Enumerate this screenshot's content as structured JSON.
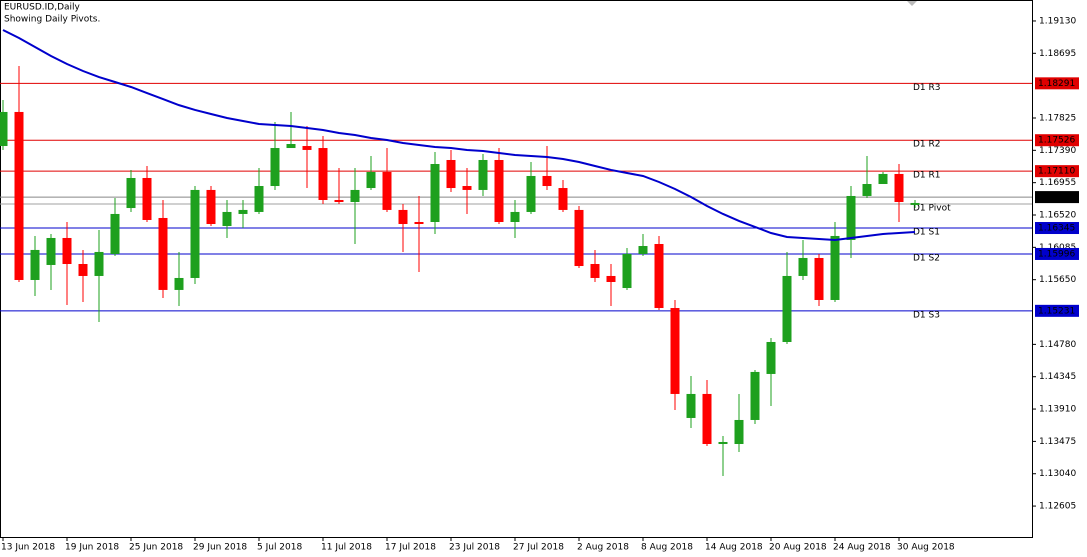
{
  "chart_data": {
    "type": "candlestick",
    "title": "EURUSD.ID,Daily",
    "subtitle": "Showing Daily Pivots.",
    "categories": [
      "13 Jun 2018",
      null,
      null,
      null,
      "19 Jun 2018",
      null,
      null,
      null,
      "25 Jun 2018",
      null,
      null,
      null,
      "29 Jun 2018",
      null,
      null,
      null,
      "5 Jul 2018",
      null,
      null,
      null,
      "11 Jul 2018",
      null,
      null,
      null,
      "17 Jul 2018",
      null,
      null,
      null,
      "23 Jul 2018",
      null,
      null,
      null,
      "27 Jul 2018",
      null,
      null,
      null,
      "2 Aug 2018",
      null,
      null,
      null,
      "8 Aug 2018",
      null,
      null,
      null,
      "14 Aug 2018",
      null,
      null,
      null,
      "20 Aug 2018",
      null,
      null,
      null,
      "24 Aug 2018",
      null,
      null,
      null,
      "30 Aug 2018",
      null
    ],
    "open": [
      1.17448,
      1.17906,
      1.15646,
      1.15848,
      1.16211,
      1.15861,
      1.157,
      1.15996,
      1.16614,
      1.17018,
      1.1648,
      1.15512,
      1.15673,
      1.16857,
      1.16372,
      1.16534,
      1.16561,
      1.1691,
      1.17421,
      1.17448,
      1.17421,
      1.16722,
      1.16695,
      1.16883,
      1.17099,
      1.16588,
      1.16426,
      1.16426,
      1.1726,
      1.1691,
      1.16857,
      1.1726,
      1.16426,
      1.16561,
      1.17045,
      1.16883,
      1.16588,
      1.15861,
      1.157,
      1.15538,
      1.15996,
      1.1613,
      1.15269,
      1.1379,
      1.14113,
      1.1344,
      1.1344,
      1.13763,
      1.14382,
      1.14812,
      1.157,
      1.15942,
      1.15377,
      1.16184,
      1.16776,
      1.16937,
      1.17072,
      1.16655
    ],
    "high": [
      1.18067,
      1.18524,
      1.16238,
      1.16265,
      1.16426,
      1.1605,
      1.16319,
      1.16749,
      1.17126,
      1.17179,
      1.16722,
      1.16023,
      1.1691,
      1.1691,
      1.16722,
      1.16722,
      1.17152,
      1.17771,
      1.17906,
      1.17717,
      1.17583,
      1.17152,
      1.17152,
      1.17314,
      1.17421,
      1.16668,
      1.16776,
      1.17368,
      1.17395,
      1.17152,
      1.17341,
      1.17421,
      1.16722,
      1.17233,
      1.17448,
      1.16991,
      1.16641,
      1.1605,
      1.15861,
      1.16076,
      1.16265,
      1.16238,
      1.15377,
      1.14355,
      1.14301,
      1.13548,
      1.14113,
      1.14436,
      1.14866,
      1.16023,
      1.16184,
      1.15996,
      1.16426,
      1.1691,
      1.17314,
      1.17099,
      1.17206,
      1.16722
    ],
    "low": [
      1.17395,
      1.15619,
      1.15431,
      1.15512,
      1.1531,
      1.1535,
      1.15081,
      1.15969,
      1.16561,
      1.16426,
      1.15404,
      1.15296,
      1.15592,
      1.16372,
      1.16211,
      1.16345,
      1.16534,
      1.16857,
      1.17421,
      1.16883,
      1.16668,
      1.16668,
      1.1613,
      1.16857,
      1.16561,
      1.16023,
      1.15754,
      1.16265,
      1.1683,
      1.16534,
      1.16776,
      1.16399,
      1.16211,
      1.16534,
      1.16857,
      1.16561,
      1.15807,
      1.15619,
      1.15296,
      1.15512,
      1.15969,
      1.15243,
      1.13898,
      1.13655,
      1.13413,
      1.1301,
      1.13333,
      1.13709,
      1.13951,
      1.14785,
      1.15646,
      1.15296,
      1.1535,
      1.15942,
      1.16749,
      1.16937,
      1.16426,
      1.16614
    ],
    "close": [
      1.17906,
      1.15646,
      1.1605,
      1.16211,
      1.15861,
      1.157,
      1.16023,
      1.16534,
      1.17018,
      1.16453,
      1.15512,
      1.15673,
      1.16857,
      1.16399,
      1.16561,
      1.16588,
      1.1691,
      1.17421,
      1.17475,
      1.17395,
      1.16722,
      1.16695,
      1.16857,
      1.17099,
      1.16588,
      1.16399,
      1.16399,
      1.17206,
      1.16883,
      1.16857,
      1.1726,
      1.16426,
      1.16561,
      1.17045,
      1.1691,
      1.16588,
      1.15834,
      1.15673,
      1.15619,
      1.15996,
      1.16103,
      1.15269,
      1.14113,
      1.14113,
      1.1344,
      1.13467,
      1.13763,
      1.14409,
      1.14812,
      1.157,
      1.15942,
      1.15377,
      1.16238,
      1.16776,
      1.16937,
      1.17072,
      1.16695,
      1.16682
    ],
    "up_color": "#1ea01e",
    "down_color": "#ff0000",
    "ma": {
      "color": "#0000cc",
      "values": [
        1.19009,
        1.18901,
        1.1878,
        1.18659,
        1.18551,
        1.18457,
        1.18376,
        1.18309,
        1.18242,
        1.18161,
        1.1808,
        1.17998,
        1.17933,
        1.17879,
        1.17825,
        1.17785,
        1.17744,
        1.17731,
        1.17717,
        1.1769,
        1.17664,
        1.17623,
        1.17596,
        1.17556,
        1.17529,
        1.17489,
        1.17462,
        1.17435,
        1.17421,
        1.17395,
        1.17381,
        1.17354,
        1.17327,
        1.17314,
        1.173,
        1.17273,
        1.17233,
        1.17179,
        1.17126,
        1.17085,
        1.17045,
        1.16964,
        1.1687,
        1.16762,
        1.16641,
        1.16534,
        1.1644,
        1.16359,
        1.16278,
        1.16224,
        1.16211,
        1.16197,
        1.16184,
        1.16211,
        1.16238,
        1.16265,
        1.16278,
        1.16292
      ]
    },
    "levels": [
      {
        "name": "D1 R3",
        "value": 1.18291,
        "color": "#e00000"
      },
      {
        "name": "D1 R2",
        "value": 1.17526,
        "color": "#e00000"
      },
      {
        "name": "D1 R1",
        "value": 1.1711,
        "label": "1.17110",
        "color": "#e00000"
      },
      {
        "name": "D1 Pivot",
        "value": 1.16668,
        "color": "#a0a0a0"
      },
      {
        "name": "D1 S1",
        "value": 1.16345,
        "color": "#0000cc"
      },
      {
        "name": "D1 S2",
        "value": 1.15996,
        "color": "#0000cc"
      },
      {
        "name": "D1 S3",
        "value": 1.15231,
        "color": "#0000cc"
      }
    ],
    "current_price": {
      "value": 1.16761,
      "color": "#000000"
    },
    "ylim": [
      1.12189,
      1.19412
    ],
    "yticks": [
      {
        "value": 1.1913,
        "label": "1.19130"
      },
      {
        "value": 1.18695,
        "label": "1.18695"
      },
      {
        "value": 1.17825,
        "label": "1.17825"
      },
      {
        "value": 1.1739,
        "label": "1.17390"
      },
      {
        "value": 1.16955,
        "label": "1.16955"
      },
      {
        "value": 1.1652,
        "label": "1.16520"
      },
      {
        "value": 1.16085,
        "label": "1.16085"
      },
      {
        "value": 1.1565,
        "label": "1.15650"
      },
      {
        "value": 1.1478,
        "label": "1.14780"
      },
      {
        "value": 1.14345,
        "label": "1.14345"
      },
      {
        "value": 1.1391,
        "label": "1.13910"
      },
      {
        "value": 1.13475,
        "label": "1.13475"
      },
      {
        "value": 1.1304,
        "label": "1.13040"
      },
      {
        "value": 1.12605,
        "label": "1.12605"
      }
    ]
  }
}
